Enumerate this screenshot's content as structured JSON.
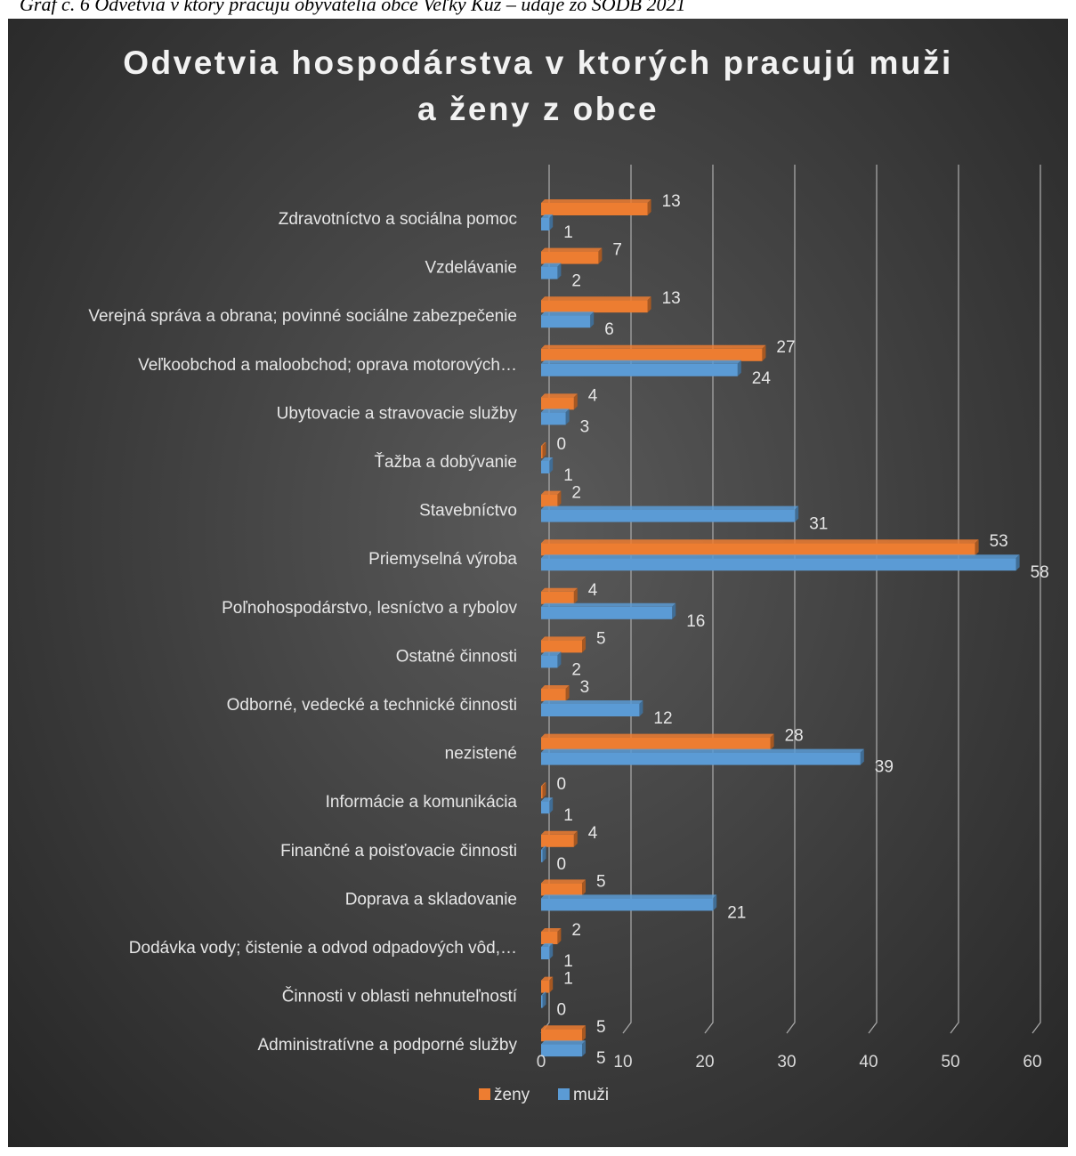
{
  "caption": "Graf č. 6 Odvetvia v ktorý pracujú obyvatelia obce Veľký Kúž – údaje zo SODB 2021",
  "colors": {
    "zeny": "#ed7d31",
    "muzi": "#5b9bd5",
    "grid": "#a6a6a6",
    "background": "#404040"
  },
  "chart_data": {
    "type": "bar",
    "orientation": "horizontal",
    "title": "Odvetvia hospodárstva v ktorých pracujú muži\na ženy z obce",
    "categories": [
      "Zdravotníctvo a sociálna pomoc",
      "Vzdelávanie",
      "Verejná správa a obrana; povinné sociálne zabezpečenie",
      "Veľkoobchod a maloobchod; oprava motorových…",
      "Ubytovacie a stravovacie služby",
      "Ťažba a dobývanie",
      "Stavebníctvo",
      "Priemyselná výroba",
      "Poľnohospodárstvo, lesníctvo a rybolov",
      "Ostatné činnosti",
      "Odborné, vedecké a technické činnosti",
      "nezistené",
      "Informácie a komunikácia",
      "Finančné a poisťovacie činnosti",
      "Doprava a skladovanie",
      "Dodávka vody; čistenie a odvod odpadových vôd,…",
      "Činnosti v oblasti nehnuteľností",
      "Administratívne a podporné služby"
    ],
    "series": [
      {
        "name": "ženy",
        "values": [
          13,
          7,
          13,
          27,
          4,
          0,
          2,
          53,
          4,
          5,
          3,
          28,
          0,
          4,
          5,
          2,
          1,
          5
        ]
      },
      {
        "name": "muži",
        "values": [
          1,
          2,
          6,
          24,
          3,
          1,
          31,
          58,
          16,
          2,
          12,
          39,
          1,
          0,
          21,
          1,
          0,
          5
        ]
      }
    ],
    "xlim": [
      0,
      60
    ],
    "xticks": [
      0,
      10,
      20,
      30,
      40,
      50,
      60
    ],
    "grid": true,
    "legend_position": "bottom",
    "data_labels": true
  }
}
